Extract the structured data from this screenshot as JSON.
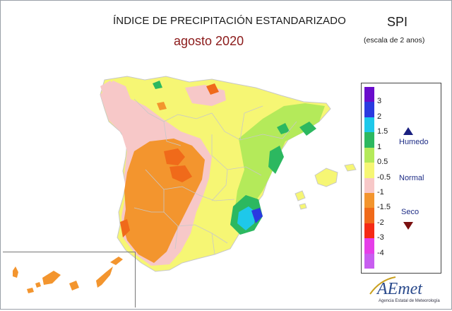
{
  "header": {
    "title": "ÍNDICE DE PRECIPITACIÓN ESTANDARIZADO",
    "subtitle": "agosto 2020",
    "index_name": "SPI",
    "scale_note": "(escala de 2 anos)"
  },
  "legend": {
    "ticks": [
      "3",
      "2",
      "1.5",
      "1",
      "0.5",
      "-0.5",
      "-1",
      "-1.5",
      "-2",
      "-3",
      "-4"
    ],
    "classes": [
      {
        "color": "#6a0dcc"
      },
      {
        "color": "#2a3ae0"
      },
      {
        "color": "#1ec8ea"
      },
      {
        "color": "#2cb860"
      },
      {
        "color": "#b4ea5a"
      },
      {
        "color": "#f6f674"
      },
      {
        "color": "#f7c8c8"
      },
      {
        "color": "#f3952e"
      },
      {
        "color": "#f06a1a"
      },
      {
        "color": "#f52a14"
      },
      {
        "color": "#e53ee8"
      },
      {
        "color": "#c85df0"
      }
    ],
    "categories": {
      "wet": "Humedo",
      "normal": "Normal",
      "dry": "Seco"
    }
  },
  "colors": {
    "title_accent": "#8b1a1a",
    "category_text": "#1e2d86",
    "wet_arrow": "#1a2080",
    "dry_arrow": "#7a1010"
  },
  "logo": {
    "name": "AEmet",
    "tagline": "Agencia Estatal de Meteorología"
  }
}
